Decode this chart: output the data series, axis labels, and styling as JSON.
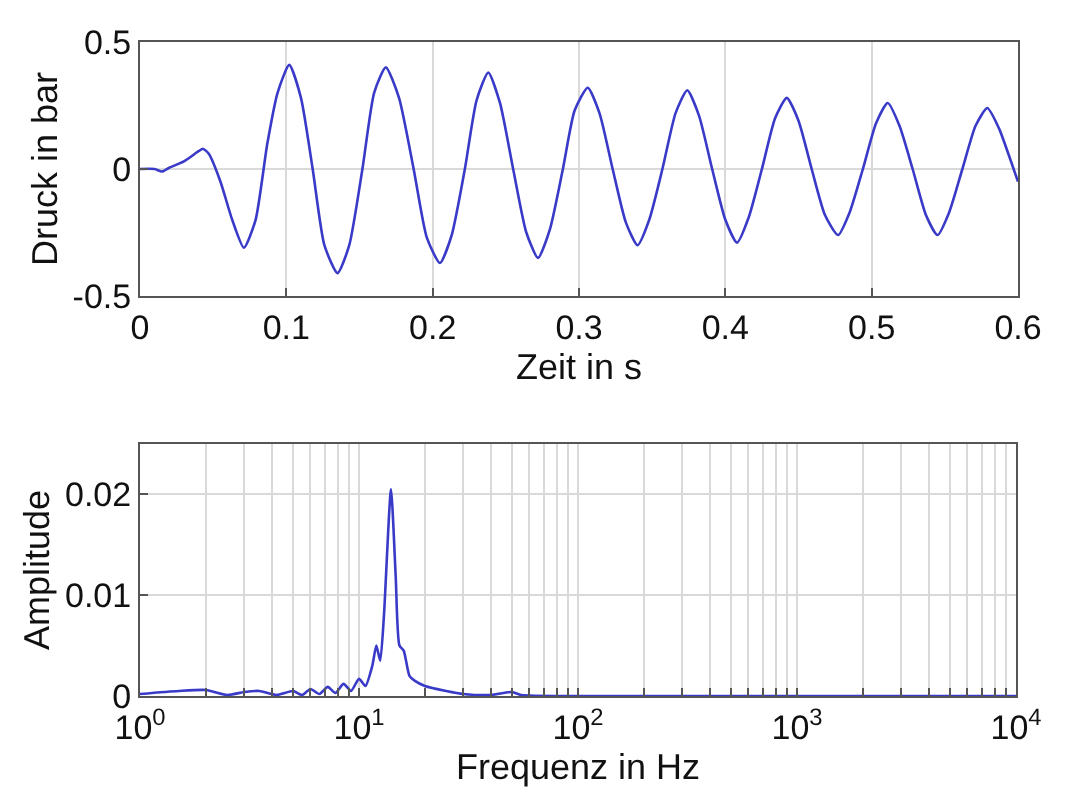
{
  "chart_data": [
    {
      "type": "line",
      "xlabel": "Zeit in s",
      "ylabel": "Druck in bar",
      "xlim": [
        0,
        0.6
      ],
      "ylim": [
        -0.5,
        0.5
      ],
      "xticks": [
        0,
        0.1,
        0.2,
        0.3,
        0.4,
        0.5,
        0.6
      ],
      "yticks": [
        -0.5,
        0,
        0.5
      ],
      "grid": true,
      "x": [
        0,
        0.01,
        0.015,
        0.02,
        0.03,
        0.04,
        0.043,
        0.047,
        0.055,
        0.063,
        0.071,
        0.079,
        0.087,
        0.094,
        0.102,
        0.11,
        0.118,
        0.126,
        0.135,
        0.143,
        0.152,
        0.16,
        0.168,
        0.177,
        0.187,
        0.196,
        0.205,
        0.213,
        0.222,
        0.23,
        0.238,
        0.246,
        0.255,
        0.264,
        0.272,
        0.28,
        0.289,
        0.297,
        0.306,
        0.314,
        0.323,
        0.332,
        0.34,
        0.348,
        0.357,
        0.366,
        0.374,
        0.382,
        0.391,
        0.4,
        0.408,
        0.416,
        0.425,
        0.434,
        0.442,
        0.45,
        0.459,
        0.468,
        0.477,
        0.485,
        0.494,
        0.503,
        0.511,
        0.519,
        0.528,
        0.537,
        0.545,
        0.553,
        0.562,
        0.571,
        0.579,
        0.587,
        0.594,
        0.6
      ],
      "series": [
        {
          "color": "#3a3ac8",
          "values": [
            0,
            0,
            -0.01,
            0.005,
            0.03,
            0.07,
            0.08,
            0.06,
            -0.05,
            -0.2,
            -0.31,
            -0.2,
            0.1,
            0.3,
            0.41,
            0.28,
            0,
            -0.3,
            -0.41,
            -0.3,
            0,
            0.3,
            0.4,
            0.28,
            0,
            -0.27,
            -0.37,
            -0.26,
            0,
            0.27,
            0.38,
            0.26,
            0,
            -0.25,
            -0.35,
            -0.24,
            0,
            0.23,
            0.32,
            0.22,
            0,
            -0.21,
            -0.3,
            -0.2,
            0,
            0.22,
            0.31,
            0.21,
            0,
            -0.2,
            -0.29,
            -0.19,
            0,
            0.2,
            0.28,
            0.19,
            0,
            -0.18,
            -0.26,
            -0.17,
            0,
            0.18,
            0.26,
            0.17,
            0,
            -0.18,
            -0.26,
            -0.17,
            0,
            0.17,
            0.24,
            0.16,
            0.05,
            -0.05
          ]
        }
      ]
    },
    {
      "type": "line",
      "xlabel": "Frequenz in Hz",
      "ylabel": "Amplitude",
      "log": "x",
      "xlim": [
        1,
        10000
      ],
      "ylim": [
        0,
        0.025
      ],
      "xticks": [
        {
          "value": 1,
          "label": "10$^{0}$"
        },
        {
          "value": 2,
          "label": null
        },
        {
          "value": 3,
          "label": null
        },
        {
          "value": 4,
          "label": null
        },
        {
          "value": 5,
          "label": null
        },
        {
          "value": 6,
          "label": null
        },
        {
          "value": 7,
          "label": null
        },
        {
          "value": 8,
          "label": null
        },
        {
          "value": 9,
          "label": null
        },
        {
          "value": 10,
          "label": "10$^{1}$"
        },
        {
          "value": 20,
          "label": null
        },
        {
          "value": 30,
          "label": null
        },
        {
          "value": 40,
          "label": null
        },
        {
          "value": 50,
          "label": null
        },
        {
          "value": 60,
          "label": null
        },
        {
          "value": 70,
          "label": null
        },
        {
          "value": 80,
          "label": null
        },
        {
          "value": 90,
          "label": null
        },
        {
          "value": 100,
          "label": "10$^{2}$"
        },
        {
          "value": 200,
          "label": null
        },
        {
          "value": 300,
          "label": null
        },
        {
          "value": 400,
          "label": null
        },
        {
          "value": 500,
          "label": null
        },
        {
          "value": 600,
          "label": null
        },
        {
          "value": 700,
          "label": null
        },
        {
          "value": 800,
          "label": null
        },
        {
          "value": 900,
          "label": null
        },
        {
          "value": 1000,
          "label": "10$^{3}$"
        },
        {
          "value": 2000,
          "label": null
        },
        {
          "value": 3000,
          "label": null
        },
        {
          "value": 4000,
          "label": null
        },
        {
          "value": 5000,
          "label": null
        },
        {
          "value": 6000,
          "label": null
        },
        {
          "value": 7000,
          "label": null
        },
        {
          "value": 8000,
          "label": null
        },
        {
          "value": 9000,
          "label": null
        },
        {
          "value": 10000,
          "label": "10$^{4}$"
        }
      ],
      "yticks": [
        0,
        0.01,
        0.02
      ],
      "grid": true,
      "x": [
        1,
        1.5,
        2,
        2.5,
        3,
        3.5,
        4.2,
        5,
        5.5,
        6,
        6.6,
        7.2,
        7.8,
        8.5,
        9.2,
        10,
        10.7,
        11.5,
        12,
        12.5,
        13,
        14,
        14.7,
        15.3,
        16,
        17,
        18,
        20,
        25,
        30,
        40,
        50,
        55,
        100,
        1000,
        10000
      ],
      "series": [
        {
          "color": "#3a3ac8",
          "values": [
            0.0002,
            0.0005,
            0.0006,
            0.0001,
            0.0004,
            0.0005,
            0.0001,
            0.0005,
            0.0001,
            0.0007,
            0.0002,
            0.0009,
            0.0003,
            0.0012,
            0.0005,
            0.0017,
            0.001,
            0.003,
            0.005,
            0.0035,
            0.008,
            0.0205,
            0.012,
            0.005,
            0.0045,
            0.002,
            0.0015,
            0.001,
            0.0005,
            0.0002,
            0.0001,
            0.0004,
            0.0001,
            0,
            0,
            0
          ]
        }
      ]
    }
  ]
}
